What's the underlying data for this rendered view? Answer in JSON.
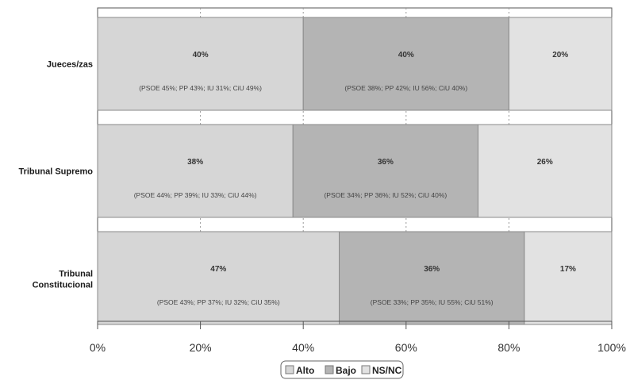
{
  "chart_data": {
    "type": "bar",
    "orientation": "horizontal",
    "stacked": true,
    "categories": [
      "Jueces/zas",
      "Tribunal Supremo",
      "Tribunal Constitucional"
    ],
    "series": [
      {
        "name": "Alto",
        "color": "#d6d6d6",
        "values": [
          40,
          38,
          47
        ],
        "value_labels": [
          "40%",
          "38%",
          "47%"
        ],
        "detail_labels": [
          "(PSOE 45%; PP 43%; IU 31%; CiU 49%)",
          "(PSOE 44%; PP 39%; IU 33%; CiU 44%)",
          "(PSOE 43%; PP 37%; IU 32%; CiU 35%)"
        ]
      },
      {
        "name": "Bajo",
        "color": "#b4b4b4",
        "values": [
          40,
          36,
          36
        ],
        "value_labels": [
          "40%",
          "36%",
          "36%"
        ],
        "detail_labels": [
          "(PSOE 38%; PP 42%; IU 56%; CiU 40%)",
          "(PSOE 34%; PP 36%; IU 52%; CiU 40%)",
          "(PSOE 33%; PP 35%; IU 55%; CiU 51%)"
        ]
      },
      {
        "name": "NS/NC",
        "color": "#e2e2e2",
        "values": [
          20,
          26,
          17
        ],
        "value_labels": [
          "20%",
          "26%",
          "17%"
        ],
        "detail_labels": [
          "",
          "",
          ""
        ]
      }
    ],
    "xlim": [
      0,
      100
    ],
    "xticks": [
      "0%",
      "20%",
      "40%",
      "60%",
      "80%",
      "100%"
    ],
    "xtick_values": [
      0,
      20,
      40,
      60,
      80,
      100
    ],
    "grid": true,
    "legend_position": "bottom-center"
  }
}
